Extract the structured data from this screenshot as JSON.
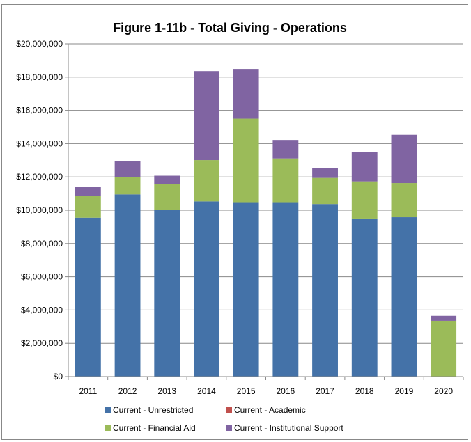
{
  "chart_data": {
    "type": "bar",
    "stacked": true,
    "title": "Figure 1-11b - Total Giving - Operations",
    "xlabel": "",
    "ylabel": "",
    "categories": [
      "2011",
      "2012",
      "2013",
      "2014",
      "2015",
      "2016",
      "2017",
      "2018",
      "2019",
      "2020"
    ],
    "ylim": [
      0,
      20000000
    ],
    "yticks": [
      0,
      2000000,
      4000000,
      6000000,
      8000000,
      10000000,
      12000000,
      14000000,
      16000000,
      18000000,
      20000000
    ],
    "ytick_labels": [
      "$0",
      "$2,000,000",
      "$4,000,000",
      "$6,000,000",
      "$8,000,000",
      "$10,000,000",
      "$12,000,000",
      "$14,000,000",
      "$16,000,000",
      "$18,000,000",
      "$20,000,000"
    ],
    "grid": true,
    "legend_position": "bottom",
    "series": [
      {
        "name": "Current - Unrestricted",
        "color": "#4472A8",
        "values": [
          9550000,
          10950000,
          10000000,
          10530000,
          10480000,
          10480000,
          10370000,
          9500000,
          9580000,
          0
        ]
      },
      {
        "name": "Current - Academic",
        "color": "#C0504D",
        "values": [
          0,
          0,
          0,
          0,
          0,
          0,
          0,
          0,
          0,
          0
        ]
      },
      {
        "name": "Current - Financial Aid",
        "color": "#9BBB59",
        "values": [
          1300000,
          1050000,
          1550000,
          2480000,
          5020000,
          2630000,
          1570000,
          2230000,
          2050000,
          3350000
        ]
      },
      {
        "name": "Current - Institutional Support",
        "color": "#8064A2",
        "values": [
          550000,
          950000,
          520000,
          5350000,
          2990000,
          1110000,
          600000,
          1780000,
          2900000,
          300000
        ]
      }
    ]
  }
}
